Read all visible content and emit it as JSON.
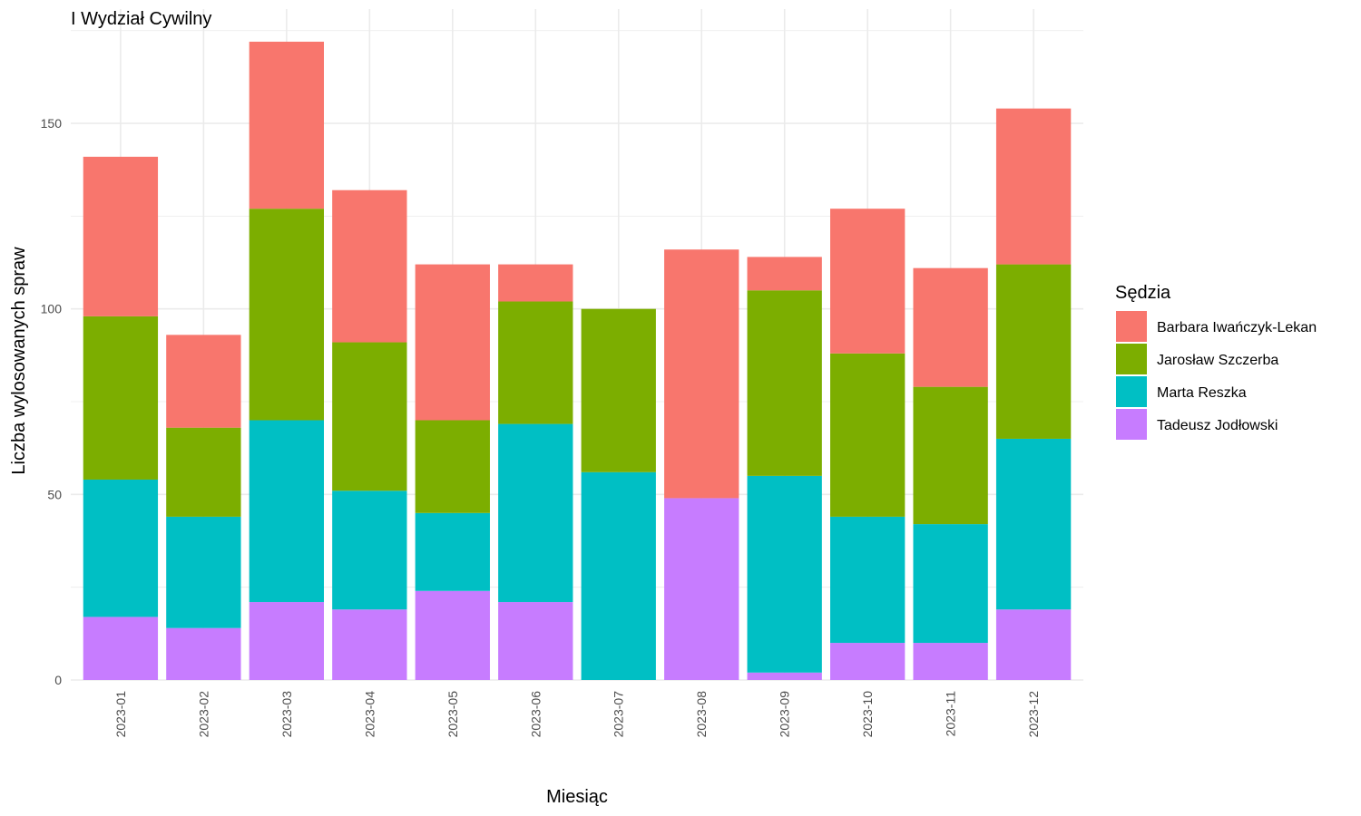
{
  "chart_data": {
    "type": "bar",
    "stacked": true,
    "title": "I Wydział Cywilny",
    "xlabel": "Miesiąc",
    "ylabel": "Liczba wylosowanych spraw",
    "ylim": [
      0,
      175
    ],
    "yticks": [
      0,
      50,
      100,
      150
    ],
    "grid": true,
    "legend": {
      "title": "Sędzia",
      "position": "right"
    },
    "categories": [
      "2023-01",
      "2023-02",
      "2023-03",
      "2023-04",
      "2023-05",
      "2023-06",
      "2023-07",
      "2023-08",
      "2023-09",
      "2023-10",
      "2023-11",
      "2023-12"
    ],
    "series": [
      {
        "name": "Tadeusz Jodłowski",
        "color": "#C77CFF",
        "values": [
          17,
          14,
          21,
          19,
          24,
          21,
          0,
          49,
          2,
          10,
          10,
          19
        ]
      },
      {
        "name": "Marta Reszka",
        "color": "#00BFC4",
        "values": [
          37,
          30,
          49,
          32,
          21,
          48,
          56,
          0,
          53,
          34,
          32,
          46
        ]
      },
      {
        "name": "Jarosław Szczerba",
        "color": "#7CAE00",
        "values": [
          44,
          24,
          57,
          40,
          25,
          33,
          44,
          0,
          50,
          44,
          37,
          47
        ]
      },
      {
        "name": "Barbara Iwańczyk-Lekan",
        "color": "#F8766D",
        "values": [
          43,
          25,
          45,
          41,
          42,
          10,
          0,
          67,
          9,
          39,
          32,
          42
        ]
      }
    ],
    "legend_order": [
      "Barbara Iwańczyk-Lekan",
      "Jarosław Szczerba",
      "Marta Reszka",
      "Tadeusz Jodłowski"
    ]
  }
}
